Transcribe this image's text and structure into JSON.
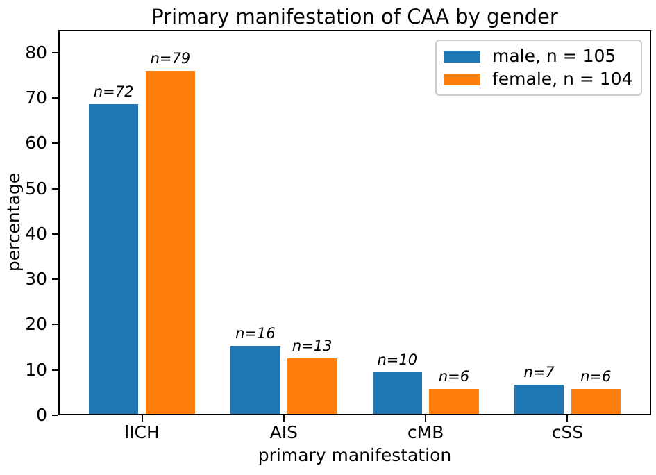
{
  "figure": {
    "title": "Primary manifestation of CAA by gender"
  },
  "colors": {
    "male": "#1f77b4",
    "female": "#ff7f0e",
    "axis": "#000000",
    "legend_border": "#cccccc"
  },
  "chart_data": {
    "type": "bar",
    "title": "Primary manifestation of CAA by gender",
    "xlabel": "primary manifestation",
    "ylabel": "percentage",
    "categories": [
      "lICH",
      "AIS",
      "cMB",
      "cSS"
    ],
    "series": [
      {
        "name": "male, n = 105",
        "color": "#1f77b4",
        "total": 105,
        "counts": [
          72,
          16,
          10,
          7
        ],
        "values": [
          68.57,
          15.24,
          9.52,
          6.67
        ],
        "annotations": [
          "n=72",
          "n=16",
          "n=10",
          "n=7"
        ]
      },
      {
        "name": "female, n = 104",
        "color": "#ff7f0e",
        "total": 104,
        "counts": [
          79,
          13,
          6,
          6
        ],
        "values": [
          75.96,
          12.5,
          5.77,
          5.77
        ],
        "annotations": [
          "n=79",
          "n=13",
          "n=6",
          "n=6"
        ]
      }
    ],
    "ylim": [
      0,
      85
    ],
    "yticks": [
      0,
      10,
      20,
      30,
      40,
      50,
      60,
      70,
      80
    ],
    "grid": false,
    "legend_position": "upper right"
  }
}
